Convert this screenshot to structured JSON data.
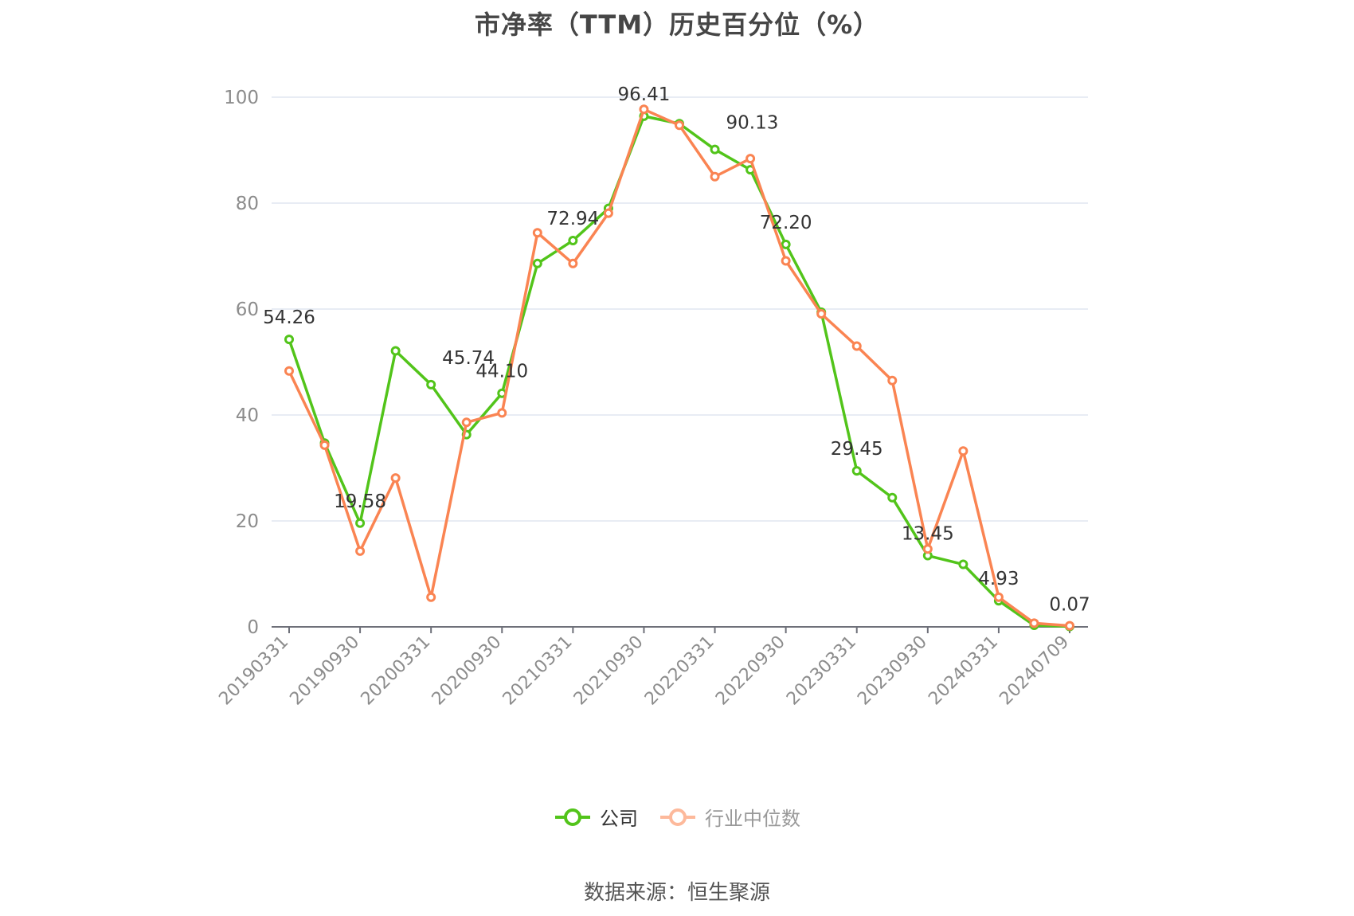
{
  "title": "市净率（TTM）历史百分位（%）",
  "legend": {
    "company": "公司",
    "industry": "行业中位数"
  },
  "footer": "数据来源：恒生聚源",
  "colors": {
    "company": "#52c41a",
    "industry": "#fa8452",
    "industry_legend": "#fdb99b",
    "grid": "#e0e6f1",
    "axis": "#6e7079",
    "tick_label": "#8c8c8c",
    "data_label": "#333333"
  },
  "chart_data": {
    "type": "line",
    "title": "市净率（TTM）历史百分位（%）",
    "xlabel": "",
    "ylabel": "",
    "ylim": [
      0,
      100
    ],
    "yticks": [
      0,
      20,
      40,
      60,
      80,
      100
    ],
    "grid": true,
    "legend_position": "bottom",
    "x": [
      "20190331",
      "20190630",
      "20190930",
      "20191231",
      "20200331",
      "20200630",
      "20200930",
      "20201231",
      "20210331",
      "20210630",
      "20210930",
      "20211231",
      "20220331",
      "20220630",
      "20220930",
      "20221231",
      "20230331",
      "20230630",
      "20230930",
      "20231231",
      "20240331",
      "20240630",
      "20240709"
    ],
    "x_tick_labels": [
      "20190331",
      "20190930",
      "20200331",
      "20200930",
      "20210331",
      "20210930",
      "20220331",
      "20220930",
      "20230331",
      "20230930",
      "20240331",
      "20240709"
    ],
    "series": [
      {
        "name": "公司",
        "values": [
          54.26,
          34.7,
          19.58,
          52.1,
          45.74,
          36.3,
          44.1,
          68.6,
          72.94,
          79.0,
          96.41,
          95.0,
          90.13,
          86.3,
          72.2,
          59.4,
          29.45,
          24.4,
          13.45,
          11.8,
          4.93,
          0.3,
          0.07
        ],
        "labels": {
          "0": "54.26",
          "2": "19.58",
          "4": "45.74",
          "6": "44.10",
          "8": "72.94",
          "10": "96.41",
          "12": "90.13",
          "14": "72.20",
          "16": "29.45",
          "18": "13.45",
          "20": "4.93",
          "22": "0.07"
        }
      },
      {
        "name": "行业中位数",
        "values": [
          48.3,
          34.3,
          14.3,
          28.1,
          5.6,
          38.6,
          40.4,
          74.4,
          68.6,
          78.1,
          97.7,
          94.7,
          85.0,
          88.4,
          69.1,
          59.1,
          53.0,
          46.5,
          14.7,
          33.2,
          5.6,
          0.7,
          0.2
        ]
      }
    ]
  }
}
